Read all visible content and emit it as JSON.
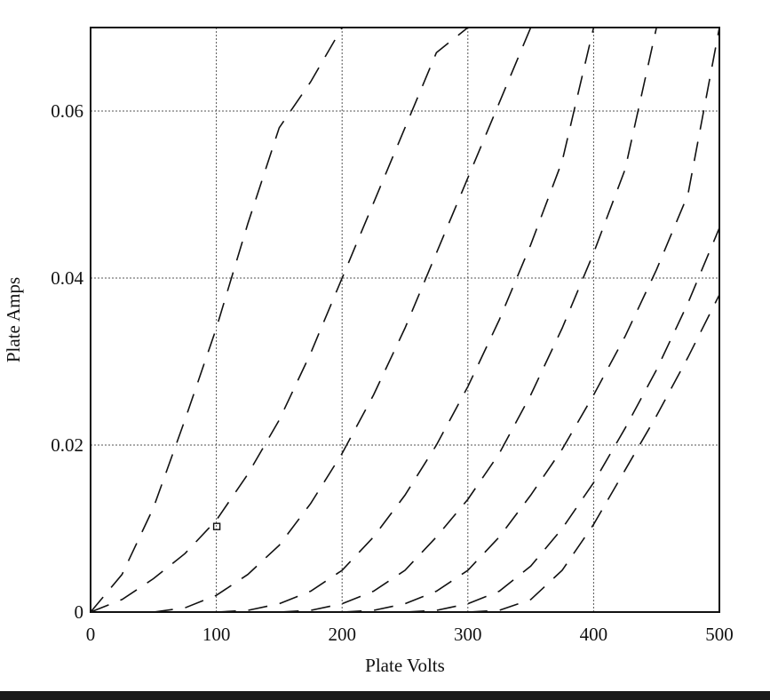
{
  "chart_data": {
    "type": "line",
    "xlabel": "Plate Volts",
    "ylabel": "Plate Amps",
    "xlim": [
      0,
      500
    ],
    "ylim": [
      0,
      0.07
    ],
    "x_ticks": [
      0,
      100,
      200,
      300,
      400,
      500
    ],
    "x_tick_labels": [
      "0",
      "100",
      "200",
      "300",
      "400",
      "500"
    ],
    "y_ticks": [
      0,
      0.02,
      0.04,
      0.06
    ],
    "y_tick_labels": [
      "0",
      "0.02",
      "0.04",
      "0.06"
    ],
    "grid": true,
    "line_style": "dashed",
    "series": [
      {
        "x": [
          0,
          25,
          50,
          75,
          100,
          125,
          150,
          175,
          200
        ],
        "values": [
          0.0,
          0.0045,
          0.0125,
          0.023,
          0.034,
          0.0465,
          0.058,
          0.0635,
          0.07
        ]
      },
      {
        "x": [
          0,
          25,
          50,
          75,
          100,
          125,
          150,
          175,
          200,
          225,
          250,
          275,
          300
        ],
        "values": [
          0.0,
          0.0015,
          0.004,
          0.007,
          0.011,
          0.0165,
          0.023,
          0.031,
          0.04,
          0.049,
          0.058,
          0.067,
          0.07
        ]
      },
      {
        "x": [
          50,
          75,
          100,
          125,
          150,
          175,
          200,
          225,
          250,
          275,
          300,
          325,
          350
        ],
        "values": [
          0.0,
          0.0005,
          0.002,
          0.0045,
          0.008,
          0.013,
          0.019,
          0.026,
          0.034,
          0.043,
          0.052,
          0.061,
          0.07
        ]
      },
      {
        "x": [
          100,
          125,
          150,
          175,
          200,
          225,
          250,
          275,
          300,
          325,
          350,
          375,
          400
        ],
        "values": [
          0.0,
          0.0002,
          0.001,
          0.0025,
          0.005,
          0.009,
          0.014,
          0.02,
          0.027,
          0.035,
          0.044,
          0.054,
          0.07
        ]
      },
      {
        "x": [
          150,
          175,
          200,
          225,
          250,
          275,
          300,
          325,
          350,
          375,
          400,
          425,
          450
        ],
        "values": [
          0.0,
          0.0002,
          0.001,
          0.0025,
          0.005,
          0.009,
          0.0135,
          0.019,
          0.026,
          0.034,
          0.043,
          0.053,
          0.07
        ]
      },
      {
        "x": [
          200,
          225,
          250,
          275,
          300,
          325,
          350,
          375,
          400,
          425,
          450,
          475,
          500
        ],
        "values": [
          0.0,
          0.0002,
          0.001,
          0.0025,
          0.005,
          0.009,
          0.014,
          0.0195,
          0.026,
          0.033,
          0.041,
          0.05,
          0.07
        ]
      },
      {
        "x": [
          250,
          275,
          300,
          325,
          350,
          375,
          400,
          425,
          450,
          475,
          500
        ],
        "values": [
          0.0,
          0.0002,
          0.001,
          0.0025,
          0.0055,
          0.01,
          0.0155,
          0.022,
          0.029,
          0.037,
          0.046
        ]
      },
      {
        "x": [
          300,
          325,
          350,
          375,
          400,
          425,
          450,
          475,
          500
        ],
        "values": [
          0.0,
          0.0002,
          0.0015,
          0.005,
          0.0105,
          0.017,
          0.0235,
          0.0305,
          0.038
        ]
      }
    ],
    "markers": [
      {
        "x": 100,
        "y": 0.0103,
        "shape": "square"
      }
    ]
  }
}
